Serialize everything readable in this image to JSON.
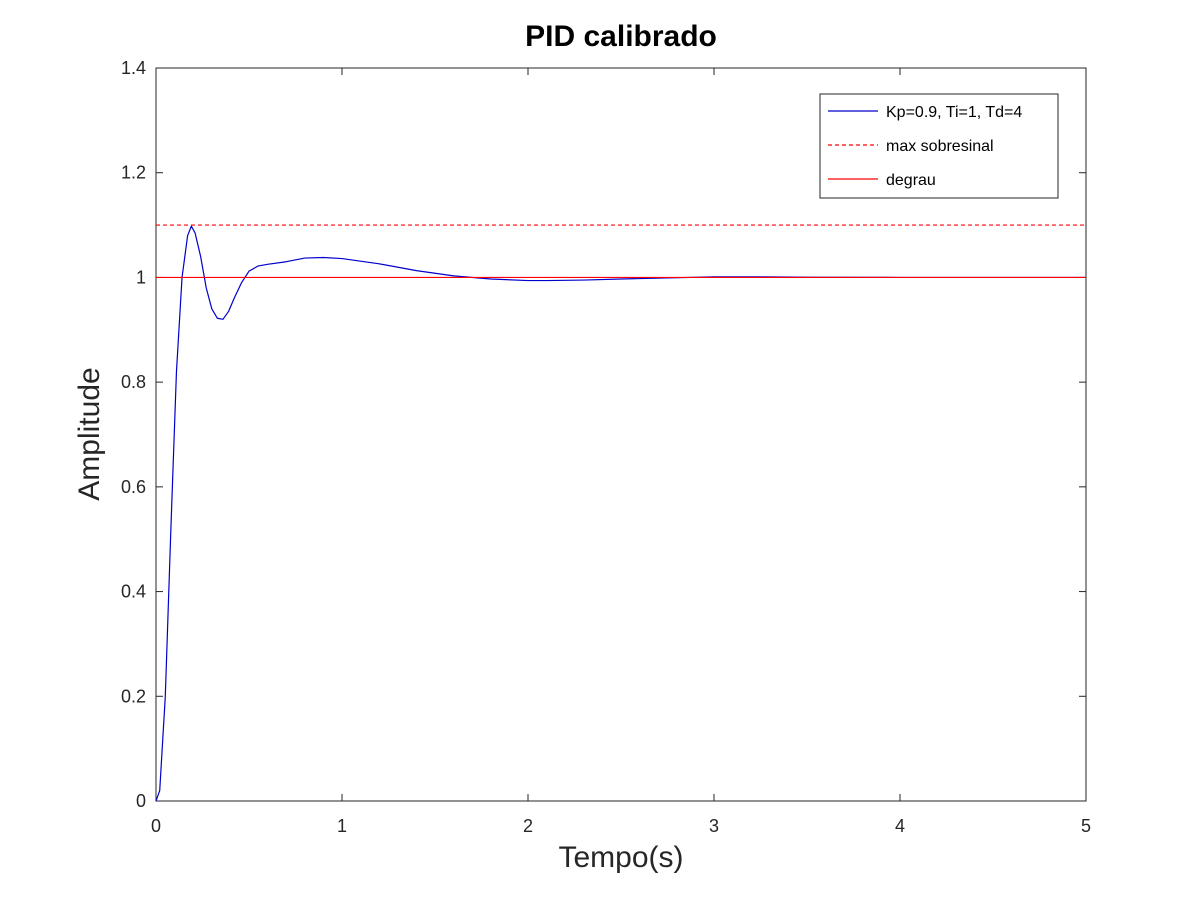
{
  "chart_data": {
    "type": "line",
    "title": "PID calibrado",
    "xlabel": "Tempo(s)",
    "ylabel": "Amplitude",
    "xlim": [
      0,
      5
    ],
    "ylim": [
      0,
      1.4
    ],
    "xticks": [
      0,
      1,
      2,
      3,
      4,
      5
    ],
    "yticks": [
      0,
      0.2,
      0.4,
      0.6,
      0.8,
      1,
      1.2,
      1.4
    ],
    "grid": false,
    "legend_position": "top-right",
    "series": [
      {
        "name": "Kp=0.9, Ti=1, Td=4",
        "color": "#0000cc",
        "style": "solid",
        "x": [
          0,
          0.02,
          0.05,
          0.08,
          0.11,
          0.14,
          0.17,
          0.19,
          0.21,
          0.24,
          0.27,
          0.3,
          0.33,
          0.36,
          0.39,
          0.42,
          0.46,
          0.5,
          0.55,
          0.6,
          0.7,
          0.8,
          0.9,
          1.0,
          1.2,
          1.4,
          1.6,
          1.8,
          2.0,
          2.1,
          2.3,
          2.5,
          2.75,
          3.0,
          3.25,
          3.5,
          4.0,
          4.5,
          5.0
        ],
        "y": [
          0,
          0.02,
          0.2,
          0.52,
          0.82,
          1.0,
          1.08,
          1.098,
          1.085,
          1.04,
          0.98,
          0.94,
          0.922,
          0.92,
          0.935,
          0.96,
          0.99,
          1.012,
          1.022,
          1.025,
          1.03,
          1.037,
          1.038,
          1.036,
          1.026,
          1.013,
          1.003,
          0.997,
          0.994,
          0.994,
          0.995,
          0.997,
          0.999,
          1.001,
          1.001,
          1.0005,
          1.0,
          1.0,
          1.0
        ]
      },
      {
        "name": "max sobresinal",
        "color": "#ff0000",
        "style": "dashed",
        "x": [
          0,
          5
        ],
        "y": [
          1.1,
          1.1
        ]
      },
      {
        "name": "degrau",
        "color": "#ff0000",
        "style": "solid",
        "x": [
          0,
          5
        ],
        "y": [
          1,
          1
        ]
      }
    ]
  }
}
